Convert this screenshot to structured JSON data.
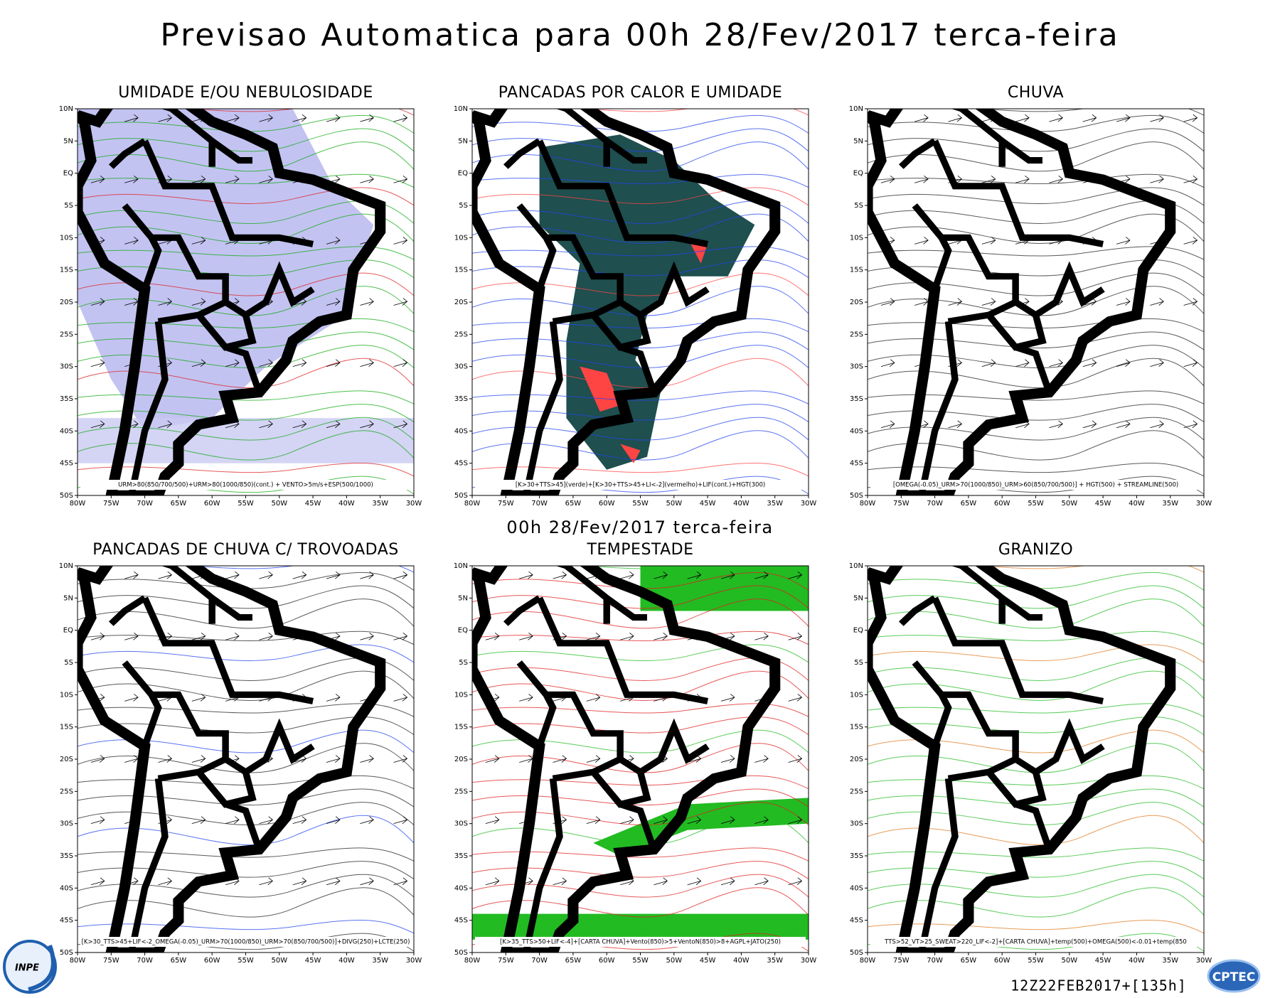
{
  "header": {
    "title": "Previsao Automatica  para 00h 28/Fev/2017 terca-feira",
    "subtitle": "00h 28/Fev/2017 terca-feira"
  },
  "axes": {
    "lat_labels": [
      "10N",
      "5N",
      "EQ",
      "5S",
      "10S",
      "15S",
      "20S",
      "25S",
      "30S",
      "35S",
      "40S",
      "45S",
      "50S"
    ],
    "lon_labels": [
      "80W",
      "75W",
      "70W",
      "65W",
      "60W",
      "55W",
      "50W",
      "45W",
      "40W",
      "35W",
      "30W"
    ]
  },
  "panels": [
    {
      "title": "UMIDADE E/OU NEBULOSIDADE",
      "caption": "URM>80(850/700/500)+URM>80(1000/850)(cont.) + VENTO>5m/s+ESP(500/1000)"
    },
    {
      "title": "PANCADAS POR CALOR E UMIDADE",
      "caption": "[K>30+TTS>45](verde)+[K>30+TTS>45+LI<-2](vermelho)+LIF(cont.)+HGT(300)"
    },
    {
      "title": "CHUVA",
      "caption": "[OMEGA(-0.05)_URM>70(1000/850)_URM>60(850/700/500)] + HGT(500) + STREAMLINE(500)"
    },
    {
      "title": "PANCADAS DE CHUVA C/ TROVOADAS",
      "caption": "[K>30_TTS>45+LIF<-2_OMEGA(-0.05)_URM>70(1000/850)_URM>70(850/700/500)]+DIVG(250)+LCTE(250)"
    },
    {
      "title": "TEMPESTADE",
      "caption": "[K>35_TTS>50+LIF<-4]+[CARTA CHUVA]+Vento(850)>5+VentoN(850)>8+AGPL+JATO(250)"
    },
    {
      "title": "GRANIZO",
      "caption": "TTS>52_VT>25_SWEAT>220_LIF<-2]+[CARTA CHUVA]+temp(500)+OMEGA(500)<-0.01+temp(850"
    }
  ],
  "footer": {
    "run": "12Z22FEB2017+[135h]",
    "logo_left": "INPE",
    "logo_right": "CPTEC"
  }
}
